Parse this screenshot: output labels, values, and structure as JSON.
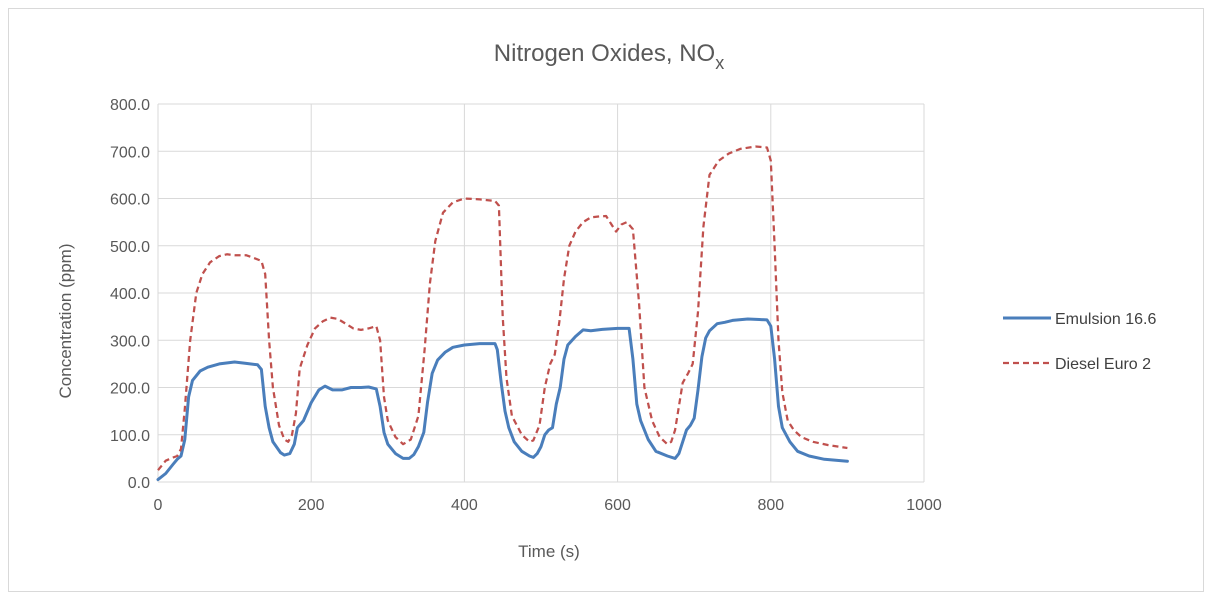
{
  "chart_data": {
    "type": "line",
    "title": "Nitrogen Oxides, NO",
    "title_subscript": "x",
    "xlabel": "Time (s)",
    "ylabel": "Concentration (ppm)",
    "xlim": [
      0,
      1000
    ],
    "ylim": [
      0,
      800
    ],
    "xticks": [
      0,
      200,
      400,
      600,
      800,
      1000
    ],
    "xtick_labels": [
      "0",
      "200",
      "400",
      "600",
      "800",
      "1000"
    ],
    "yticks": [
      0,
      100,
      200,
      300,
      400,
      500,
      600,
      700,
      800
    ],
    "ytick_labels": [
      "0.0",
      "100.0",
      "200.0",
      "300.0",
      "400.0",
      "500.0",
      "600.0",
      "700.0",
      "800.0"
    ],
    "grid": true,
    "legend_position": "right",
    "series": [
      {
        "name": "Emulsion 16.6",
        "color": "#4a7ebb",
        "style": "solid",
        "points": [
          [
            0,
            5
          ],
          [
            10,
            18
          ],
          [
            20,
            38
          ],
          [
            25,
            48
          ],
          [
            30,
            55
          ],
          [
            35,
            90
          ],
          [
            40,
            180
          ],
          [
            45,
            215
          ],
          [
            55,
            235
          ],
          [
            65,
            243
          ],
          [
            80,
            250
          ],
          [
            100,
            254
          ],
          [
            115,
            251
          ],
          [
            130,
            248
          ],
          [
            135,
            238
          ],
          [
            140,
            160
          ],
          [
            145,
            115
          ],
          [
            150,
            85
          ],
          [
            160,
            62
          ],
          [
            165,
            57
          ],
          [
            172,
            60
          ],
          [
            178,
            80
          ],
          [
            182,
            115
          ],
          [
            190,
            130
          ],
          [
            200,
            168
          ],
          [
            210,
            195
          ],
          [
            218,
            203
          ],
          [
            228,
            195
          ],
          [
            240,
            195
          ],
          [
            252,
            200
          ],
          [
            265,
            200
          ],
          [
            275,
            201
          ],
          [
            285,
            197
          ],
          [
            290,
            160
          ],
          [
            295,
            105
          ],
          [
            300,
            80
          ],
          [
            310,
            60
          ],
          [
            320,
            50
          ],
          [
            328,
            50
          ],
          [
            334,
            58
          ],
          [
            340,
            75
          ],
          [
            347,
            105
          ],
          [
            352,
            170
          ],
          [
            358,
            230
          ],
          [
            365,
            258
          ],
          [
            375,
            275
          ],
          [
            385,
            285
          ],
          [
            400,
            290
          ],
          [
            420,
            293
          ],
          [
            440,
            293
          ],
          [
            443,
            280
          ],
          [
            448,
            210
          ],
          [
            453,
            150
          ],
          [
            458,
            115
          ],
          [
            465,
            85
          ],
          [
            475,
            65
          ],
          [
            485,
            55
          ],
          [
            490,
            52
          ],
          [
            495,
            60
          ],
          [
            500,
            75
          ],
          [
            505,
            100
          ],
          [
            510,
            110
          ],
          [
            515,
            115
          ],
          [
            520,
            165
          ],
          [
            525,
            200
          ],
          [
            530,
            260
          ],
          [
            535,
            290
          ],
          [
            545,
            308
          ],
          [
            555,
            322
          ],
          [
            565,
            320
          ],
          [
            580,
            323
          ],
          [
            600,
            325
          ],
          [
            615,
            325
          ],
          [
            620,
            260
          ],
          [
            625,
            165
          ],
          [
            630,
            130
          ],
          [
            640,
            90
          ],
          [
            650,
            65
          ],
          [
            665,
            55
          ],
          [
            675,
            50
          ],
          [
            680,
            60
          ],
          [
            685,
            85
          ],
          [
            690,
            110
          ],
          [
            695,
            120
          ],
          [
            700,
            135
          ],
          [
            705,
            195
          ],
          [
            710,
            265
          ],
          [
            715,
            305
          ],
          [
            720,
            320
          ],
          [
            730,
            335
          ],
          [
            740,
            338
          ],
          [
            750,
            342
          ],
          [
            770,
            345
          ],
          [
            785,
            344
          ],
          [
            795,
            343
          ],
          [
            800,
            330
          ],
          [
            805,
            260
          ],
          [
            810,
            160
          ],
          [
            815,
            115
          ],
          [
            825,
            85
          ],
          [
            835,
            65
          ],
          [
            850,
            55
          ],
          [
            870,
            48
          ],
          [
            885,
            46
          ],
          [
            900,
            44
          ]
        ]
      },
      {
        "name": "Diesel Euro 2",
        "color": "#c0504d",
        "style": "dashed",
        "points": [
          [
            0,
            25
          ],
          [
            10,
            45
          ],
          [
            20,
            52
          ],
          [
            25,
            55
          ],
          [
            30,
            70
          ],
          [
            35,
            155
          ],
          [
            42,
            300
          ],
          [
            50,
            400
          ],
          [
            58,
            440
          ],
          [
            68,
            465
          ],
          [
            80,
            478
          ],
          [
            90,
            482
          ],
          [
            100,
            480
          ],
          [
            115,
            480
          ],
          [
            125,
            474
          ],
          [
            135,
            468
          ],
          [
            140,
            440
          ],
          [
            145,
            300
          ],
          [
            150,
            200
          ],
          [
            158,
            120
          ],
          [
            165,
            90
          ],
          [
            170,
            85
          ],
          [
            175,
            100
          ],
          [
            180,
            145
          ],
          [
            185,
            240
          ],
          [
            195,
            290
          ],
          [
            205,
            325
          ],
          [
            215,
            340
          ],
          [
            225,
            348
          ],
          [
            235,
            345
          ],
          [
            245,
            335
          ],
          [
            255,
            325
          ],
          [
            265,
            322
          ],
          [
            275,
            325
          ],
          [
            285,
            330
          ],
          [
            290,
            300
          ],
          [
            295,
            180
          ],
          [
            300,
            130
          ],
          [
            310,
            95
          ],
          [
            320,
            80
          ],
          [
            330,
            90
          ],
          [
            340,
            140
          ],
          [
            348,
            280
          ],
          [
            355,
            420
          ],
          [
            362,
            510
          ],
          [
            372,
            570
          ],
          [
            385,
            592
          ],
          [
            400,
            600
          ],
          [
            420,
            598
          ],
          [
            440,
            595
          ],
          [
            445,
            585
          ],
          [
            450,
            350
          ],
          [
            455,
            220
          ],
          [
            462,
            140
          ],
          [
            475,
            100
          ],
          [
            485,
            85
          ],
          [
            490,
            88
          ],
          [
            498,
            120
          ],
          [
            505,
            200
          ],
          [
            512,
            250
          ],
          [
            518,
            270
          ],
          [
            524,
            340
          ],
          [
            530,
            430
          ],
          [
            537,
            500
          ],
          [
            545,
            530
          ],
          [
            555,
            550
          ],
          [
            565,
            560
          ],
          [
            575,
            562
          ],
          [
            585,
            563
          ],
          [
            592,
            545
          ],
          [
            598,
            530
          ],
          [
            605,
            545
          ],
          [
            612,
            550
          ],
          [
            620,
            535
          ],
          [
            628,
            380
          ],
          [
            635,
            200
          ],
          [
            645,
            130
          ],
          [
            655,
            95
          ],
          [
            665,
            80
          ],
          [
            670,
            85
          ],
          [
            675,
            110
          ],
          [
            680,
            160
          ],
          [
            685,
            210
          ],
          [
            692,
            230
          ],
          [
            698,
            250
          ],
          [
            705,
            360
          ],
          [
            712,
            540
          ],
          [
            720,
            650
          ],
          [
            732,
            680
          ],
          [
            745,
            695
          ],
          [
            760,
            705
          ],
          [
            780,
            710
          ],
          [
            795,
            708
          ],
          [
            800,
            680
          ],
          [
            805,
            500
          ],
          [
            810,
            300
          ],
          [
            815,
            190
          ],
          [
            822,
            130
          ],
          [
            830,
            110
          ],
          [
            840,
            95
          ],
          [
            855,
            85
          ],
          [
            875,
            78
          ],
          [
            900,
            72
          ]
        ]
      }
    ]
  }
}
